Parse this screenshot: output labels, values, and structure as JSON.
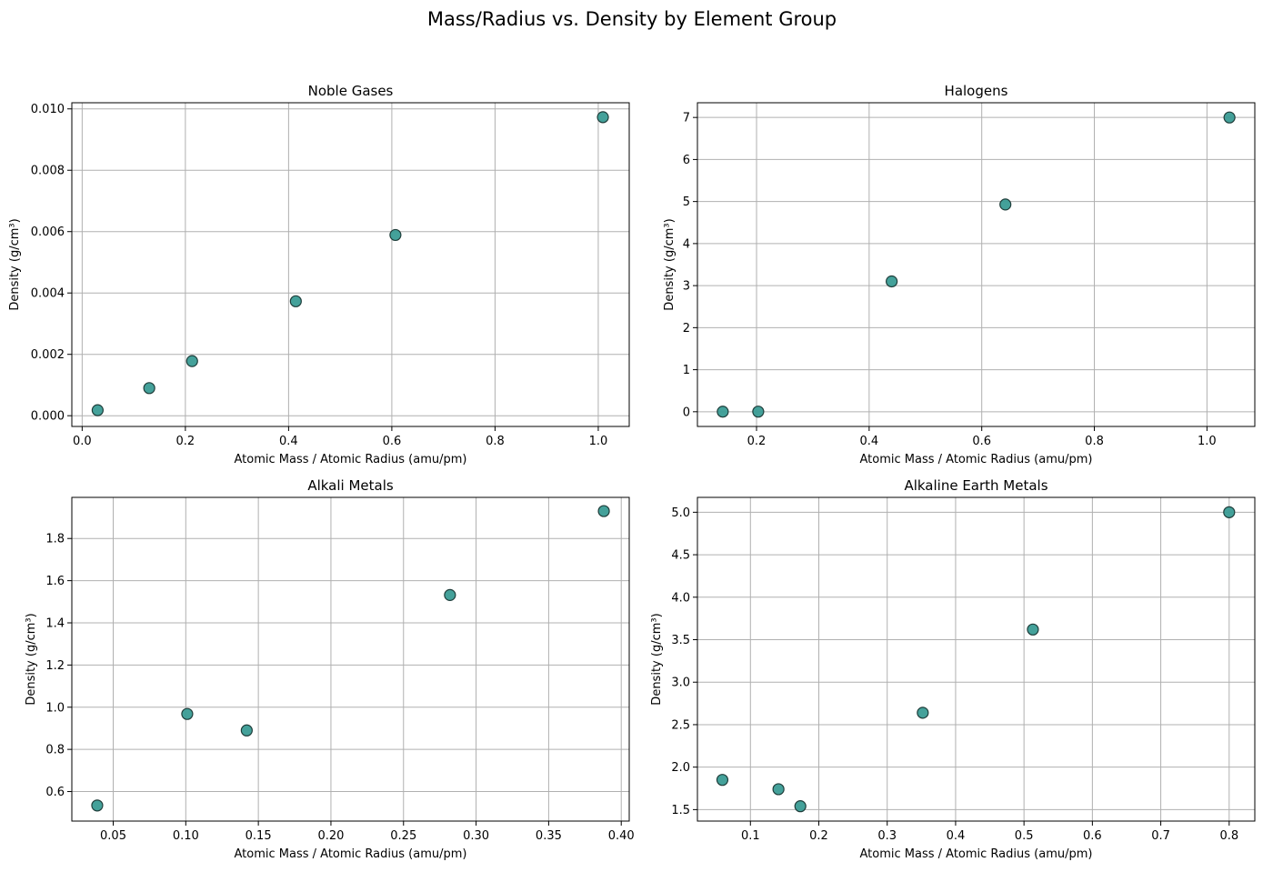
{
  "figure": {
    "title": "Mass/Radius vs. Density by Element Group",
    "marker_color": "#3a9c95",
    "marker_edge": "#1f3d3a",
    "grid_color": "#b0b0b0"
  },
  "chart_data": [
    {
      "type": "scatter",
      "title": "Noble Gases",
      "xlabel": "Atomic Mass / Atomic Radius (amu/pm)",
      "ylabel": "Density (g/cm³)",
      "xlim": [
        -0.02,
        1.06
      ],
      "ylim": [
        -0.00035,
        0.0102
      ],
      "xticks": [
        0.0,
        0.2,
        0.4,
        0.6,
        0.8,
        1.0
      ],
      "xtick_labels": [
        "0.0",
        "0.2",
        "0.4",
        "0.6",
        "0.8",
        "1.0"
      ],
      "yticks": [
        0.0,
        0.002,
        0.004,
        0.006,
        0.008,
        0.01
      ],
      "ytick_labels": [
        "0.000",
        "0.002",
        "0.004",
        "0.006",
        "0.008",
        "0.010"
      ],
      "grid": true,
      "x": [
        0.03,
        0.13,
        0.213,
        0.414,
        0.607,
        1.009
      ],
      "y": [
        0.00018,
        0.0009,
        0.00178,
        0.00373,
        0.00589,
        0.00973
      ]
    },
    {
      "type": "scatter",
      "title": "Halogens",
      "xlabel": "Atomic Mass / Atomic Radius (amu/pm)",
      "ylabel": "Density (g/cm³)",
      "xlim": [
        0.095,
        1.085
      ],
      "ylim": [
        -0.35,
        7.35
      ],
      "xticks": [
        0.2,
        0.4,
        0.6,
        0.8,
        1.0
      ],
      "xtick_labels": [
        "0.2",
        "0.4",
        "0.6",
        "0.8",
        "1.0"
      ],
      "yticks": [
        0,
        1,
        2,
        3,
        4,
        5,
        6,
        7
      ],
      "ytick_labels": [
        "0",
        "1",
        "2",
        "3",
        "4",
        "5",
        "6",
        "7"
      ],
      "grid": true,
      "x": [
        0.14,
        0.203,
        0.44,
        0.642,
        1.04
      ],
      "y": [
        0.0017,
        0.0032,
        3.1,
        4.93,
        7.0
      ]
    },
    {
      "type": "scatter",
      "title": "Alkali Metals",
      "xlabel": "Atomic Mass / Atomic Radius (amu/pm)",
      "ylabel": "Density (g/cm³)",
      "xlim": [
        0.0215,
        0.4055
      ],
      "ylim": [
        0.46,
        1.995
      ],
      "xticks": [
        0.05,
        0.1,
        0.15,
        0.2,
        0.25,
        0.3,
        0.35,
        0.4
      ],
      "xtick_labels": [
        "0.05",
        "0.10",
        "0.15",
        "0.20",
        "0.25",
        "0.30",
        "0.35",
        "0.40"
      ],
      "yticks": [
        0.6,
        0.8,
        1.0,
        1.2,
        1.4,
        1.6,
        1.8
      ],
      "ytick_labels": [
        "0.6",
        "0.8",
        "1.0",
        "1.2",
        "1.4",
        "1.6",
        "1.8"
      ],
      "grid": true,
      "x": [
        0.039,
        0.101,
        0.142,
        0.282,
        0.388
      ],
      "y": [
        0.534,
        0.968,
        0.89,
        1.532,
        1.93
      ]
    },
    {
      "type": "scatter",
      "title": "Alkaline Earth Metals",
      "xlabel": "Atomic Mass / Atomic Radius (amu/pm)",
      "ylabel": "Density (g/cm³)",
      "xlim": [
        0.0225,
        0.8375
      ],
      "ylim": [
        1.365,
        5.175
      ],
      "xticks": [
        0.1,
        0.2,
        0.3,
        0.4,
        0.5,
        0.6,
        0.7,
        0.8
      ],
      "xtick_labels": [
        "0.1",
        "0.2",
        "0.3",
        "0.4",
        "0.5",
        "0.6",
        "0.7",
        "0.8"
      ],
      "yticks": [
        1.5,
        2.0,
        2.5,
        3.0,
        3.5,
        4.0,
        4.5,
        5.0
      ],
      "ytick_labels": [
        "1.5",
        "2.0",
        "2.5",
        "3.0",
        "3.5",
        "4.0",
        "4.5",
        "5.0"
      ],
      "grid": true,
      "x": [
        0.059,
        0.141,
        0.173,
        0.352,
        0.513,
        0.8
      ],
      "y": [
        1.85,
        1.74,
        1.54,
        2.64,
        3.62,
        5.0
      ]
    }
  ]
}
